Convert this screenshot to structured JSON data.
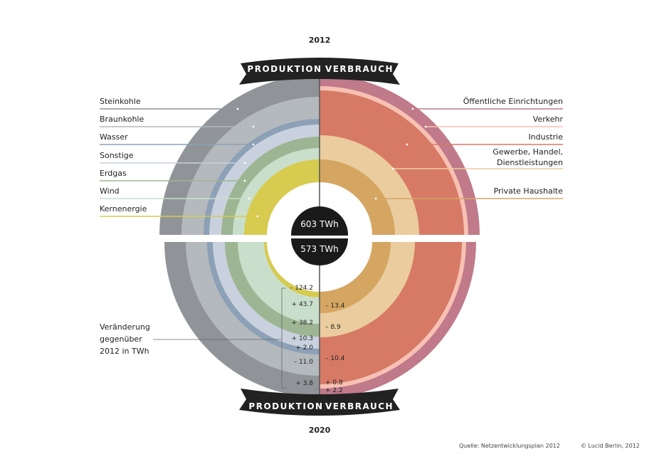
{
  "header": {
    "year_top": "2012",
    "year_bottom": "2020"
  },
  "banners": {
    "left": "PRODUKTION",
    "right": "VERBRAUCH"
  },
  "totals": {
    "y2012": "603 TWh",
    "y2020": "573 TWh"
  },
  "change_label": [
    "Veränderung",
    "gegenüber",
    "2012 in TWh"
  ],
  "footer": {
    "source": "Quelle: Netzentwicklungsplan 2012",
    "copyright": "© Lucid Berlin, 2012"
  },
  "colors": {
    "Steinkohle": "#909499",
    "Braunkohle": "#b4b9bd",
    "Wasser": "#8ca0b6",
    "Sonstige": "#c9d1de",
    "Erdgas": "#9db592",
    "Wind": "#cadfcb",
    "Kernenergie": "#d7cb50",
    "Oeffentliche": "#c07a8a",
    "Verkehr": "#f7c1b3",
    "Industrie": "#d67a66",
    "Gewerbe": "#ebcc9e",
    "Haushalte": "#d5a662",
    "banner": "#222222",
    "hole": "#ffffff",
    "total_bg": "#1a1a1a"
  },
  "chart_data": {
    "type": "nested-semicircle",
    "unit": "TWh",
    "years": [
      "2012",
      "2020"
    ],
    "totals": [
      603,
      573
    ],
    "production": {
      "labels": [
        "Steinkohle",
        "Braunkohle",
        "Wasser",
        "Sonstige",
        "Erdgas",
        "Wind",
        "Kernenergie"
      ],
      "change_2012_2020": [
        "+ 3.8",
        "– 11.0",
        "+ 2.0",
        "+ 10.3",
        "+ 38.2",
        "+ 43.7",
        "– 124.2"
      ]
    },
    "consumption": {
      "labels": [
        "Öffentliche Einrichtungen",
        "Verkehr",
        "Industrie",
        "Gewerbe, Handel, Dienstleistungen",
        "Private Haushalte"
      ],
      "change_2012_2020": [
        "+ 2.2",
        "+ 0.8",
        "– 10.4",
        "– 8.9",
        "– 13.4"
      ]
    }
  }
}
